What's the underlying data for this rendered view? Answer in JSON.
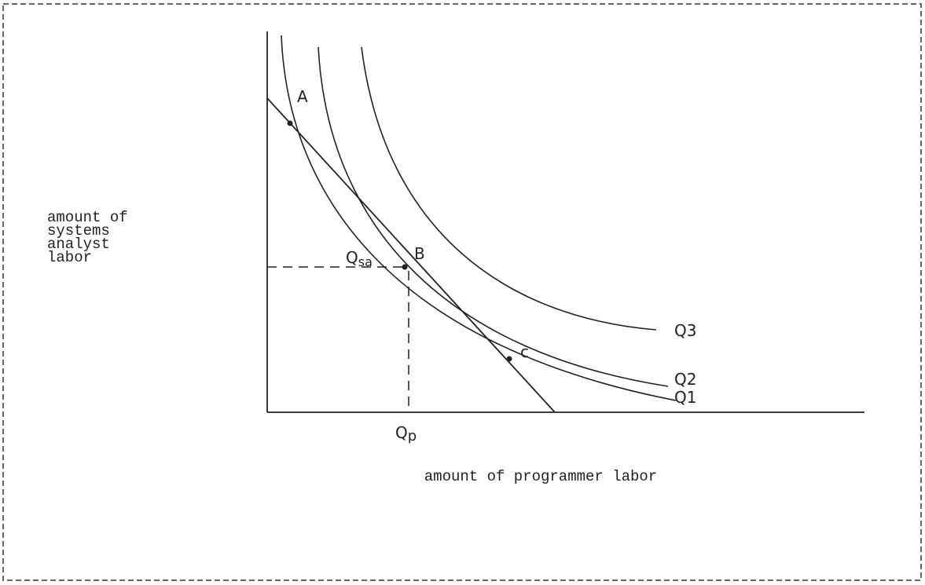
{
  "y_axis_label": [
    "amount of",
    "systems",
    "analyst",
    "labor"
  ],
  "x_axis_label": "amount of programmer labor",
  "points": {
    "a": "A",
    "b": "B",
    "c": "c"
  },
  "curves": {
    "q1": "Q1",
    "q2": "Q2",
    "q3": "Q3"
  },
  "y_marker": {
    "main": "Q",
    "sub": "sa"
  },
  "x_marker": {
    "main": "Q",
    "sub": "p"
  }
}
